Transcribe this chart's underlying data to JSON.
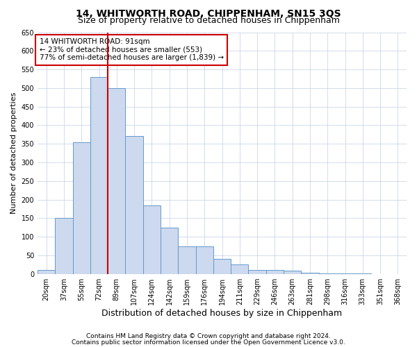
{
  "title": "14, WHITWORTH ROAD, CHIPPENHAM, SN15 3QS",
  "subtitle": "Size of property relative to detached houses in Chippenham",
  "xlabel": "Distribution of detached houses by size in Chippenham",
  "ylabel": "Number of detached properties",
  "categories": [
    "20sqm",
    "37sqm",
    "55sqm",
    "72sqm",
    "89sqm",
    "107sqm",
    "124sqm",
    "142sqm",
    "159sqm",
    "176sqm",
    "194sqm",
    "211sqm",
    "229sqm",
    "246sqm",
    "263sqm",
    "281sqm",
    "298sqm",
    "316sqm",
    "333sqm",
    "351sqm",
    "368sqm"
  ],
  "values": [
    10,
    150,
    355,
    530,
    500,
    370,
    185,
    125,
    75,
    75,
    40,
    25,
    10,
    10,
    8,
    3,
    2,
    1,
    1,
    0,
    0
  ],
  "bar_color": "#ccd9ee",
  "bar_edge_color": "#6699cc",
  "red_line_index": 3.5,
  "red_line_color": "#cc0000",
  "annotation_text": "14 WHITWORTH ROAD: 91sqm\n← 23% of detached houses are smaller (553)\n77% of semi-detached houses are larger (1,839) →",
  "annotation_box_color": "#ffffff",
  "annotation_box_edge_color": "#cc0000",
  "ylim": [
    0,
    650
  ],
  "yticks": [
    0,
    50,
    100,
    150,
    200,
    250,
    300,
    350,
    400,
    450,
    500,
    550,
    600,
    650
  ],
  "footer_line1": "Contains HM Land Registry data © Crown copyright and database right 2024.",
  "footer_line2": "Contains public sector information licensed under the Open Government Licence v3.0.",
  "bg_color": "#ffffff",
  "grid_color": "#ccd6e8",
  "title_fontsize": 10,
  "subtitle_fontsize": 9,
  "ylabel_fontsize": 8,
  "xlabel_fontsize": 9,
  "tick_fontsize": 7,
  "annotation_fontsize": 7.5,
  "footer_fontsize": 6.5
}
